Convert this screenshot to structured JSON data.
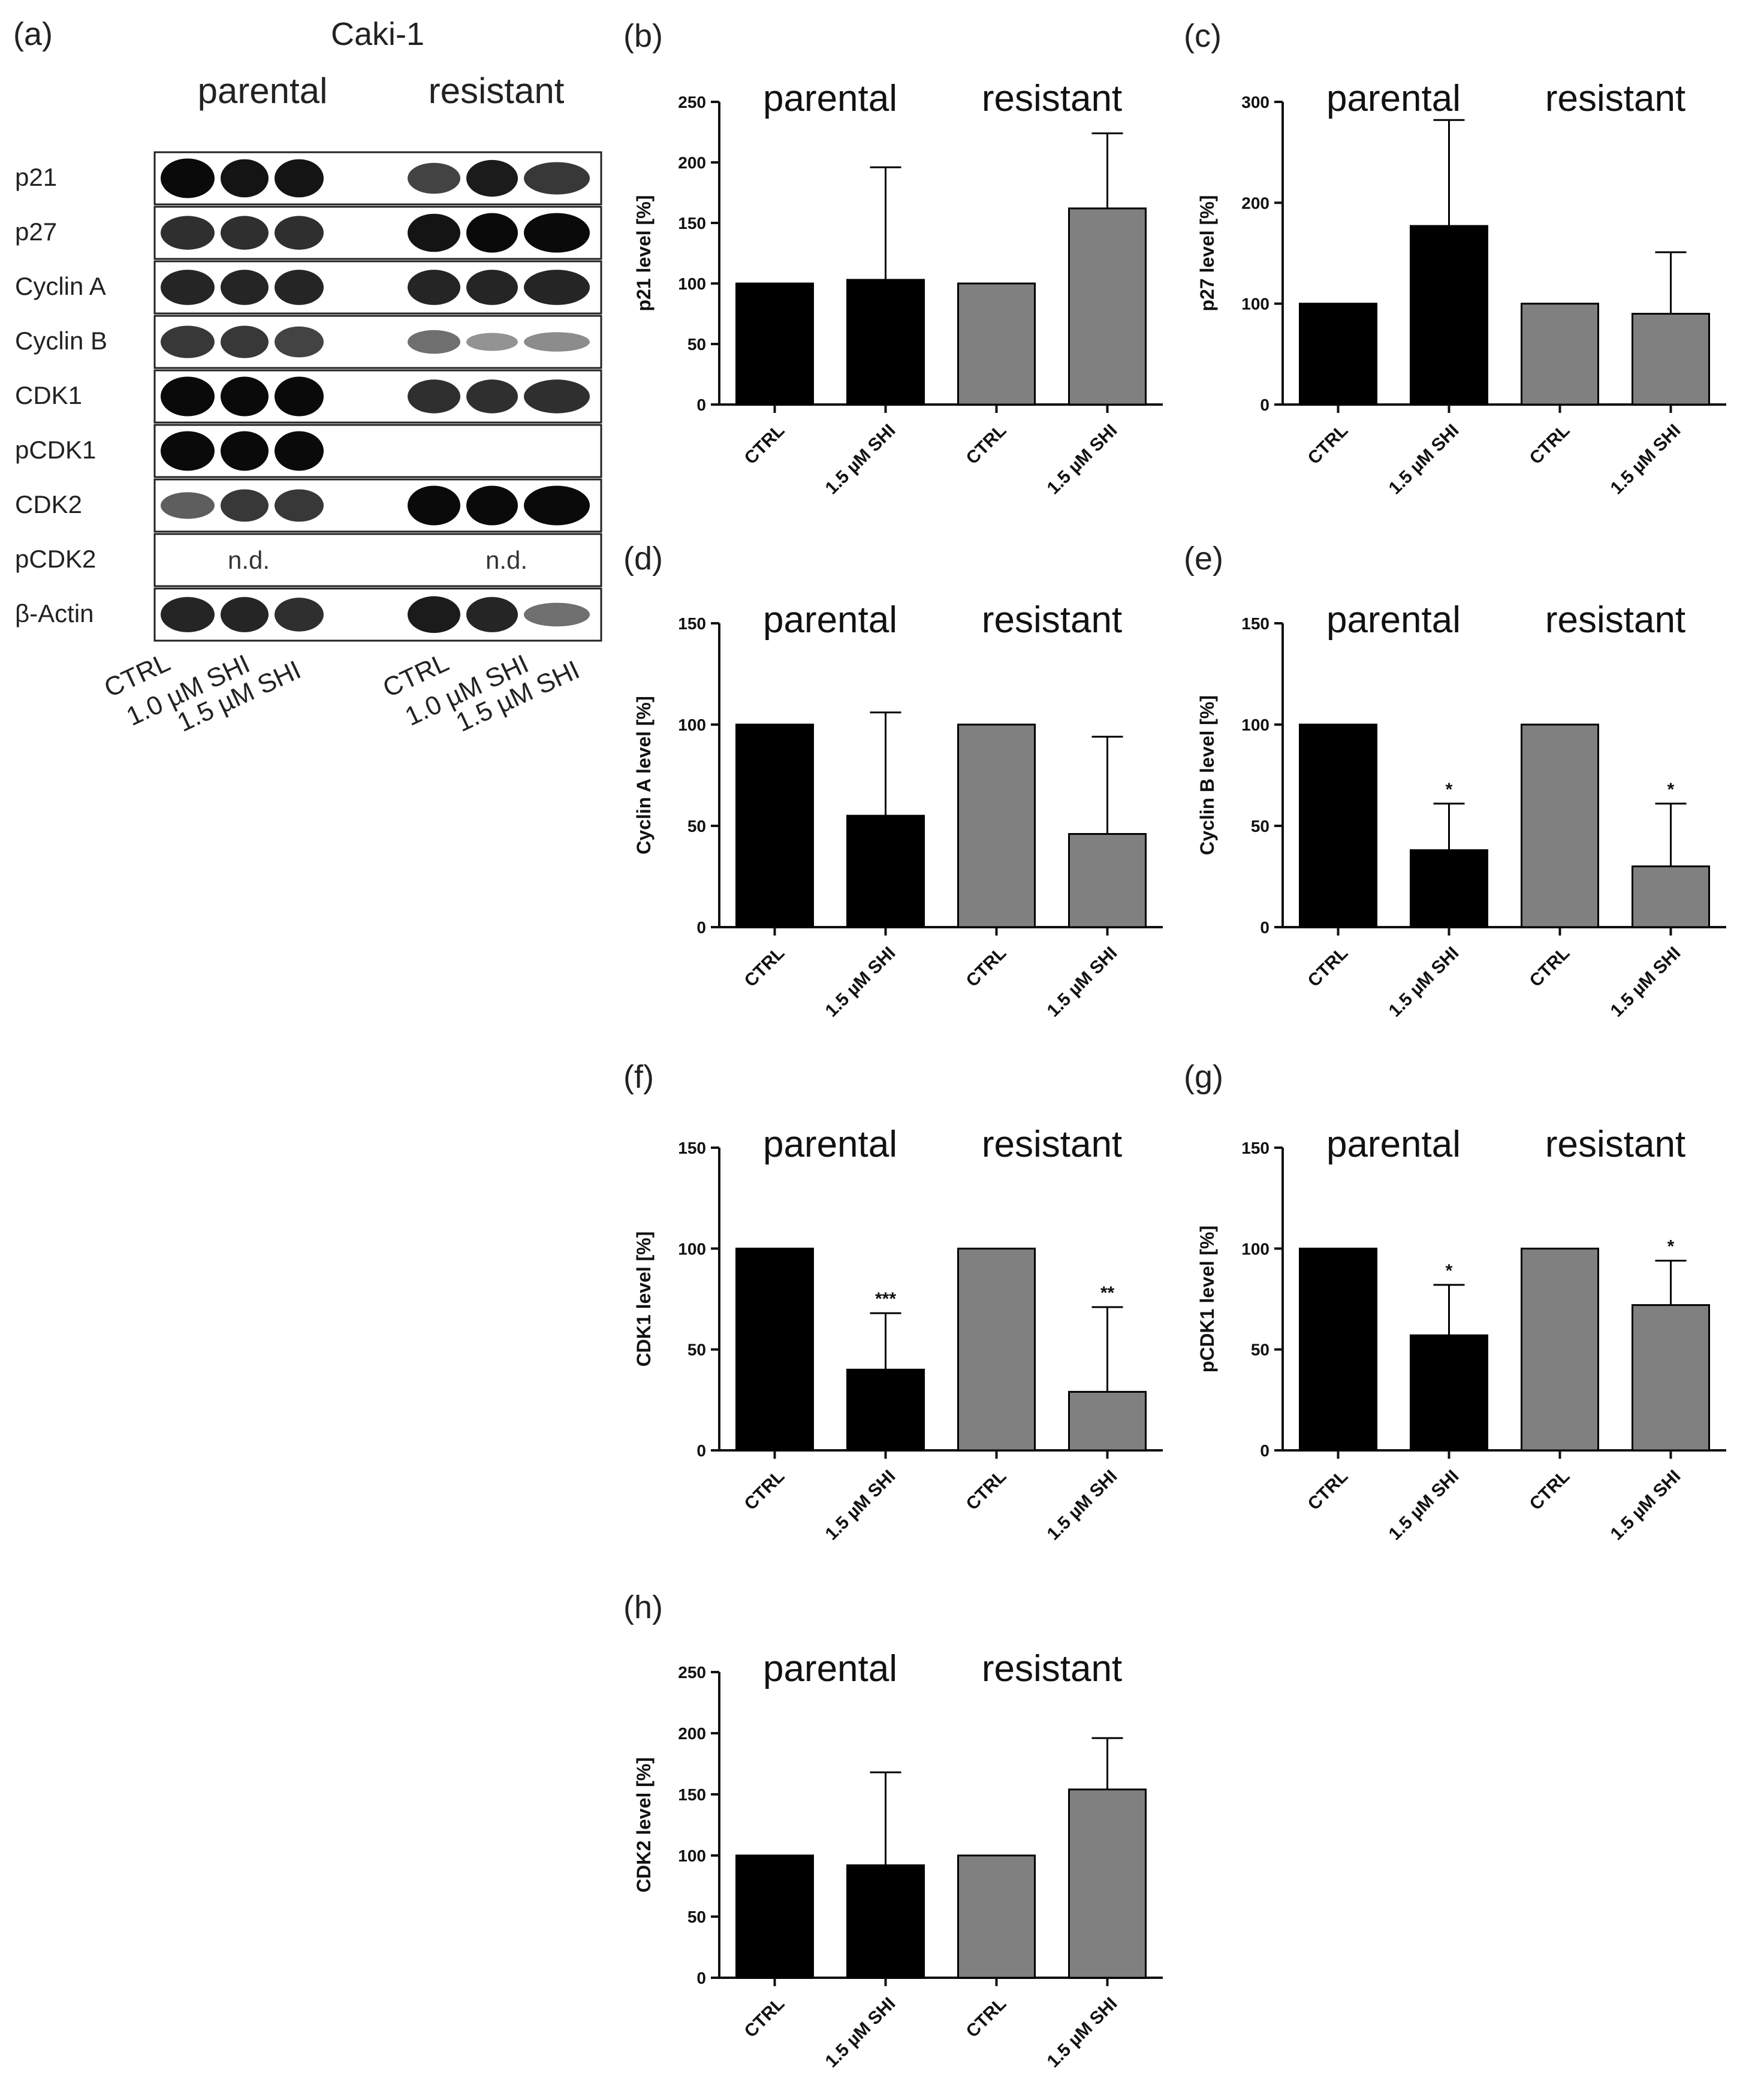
{
  "figure": {
    "panel_a": {
      "letter": "(a)",
      "title": "Caki-1",
      "groups": [
        "parental",
        "resistant"
      ],
      "rows": [
        "p21",
        "p27",
        "Cyclin A",
        "Cyclin B",
        "CDK1",
        "pCDK1",
        "CDK2",
        "pCDK2",
        "β-Actin"
      ],
      "nd_label": "n.d.",
      "lanes": [
        "CTRL",
        "1.0 µM SHI",
        "1.5 µM SHI"
      ],
      "band_intensity": {
        "parental": [
          [
            1.0,
            0.95,
            0.95
          ],
          [
            0.8,
            0.8,
            0.8
          ],
          [
            0.85,
            0.85,
            0.85
          ],
          [
            0.75,
            0.75,
            0.7
          ],
          [
            1.0,
            1.0,
            1.0
          ],
          [
            1.0,
            1.0,
            1.0
          ],
          [
            0.55,
            0.75,
            0.75
          ],
          null,
          [
            0.85,
            0.85,
            0.8
          ]
        ],
        "resistant": [
          [
            0.7,
            0.9,
            0.75
          ],
          [
            0.95,
            1.0,
            1.0
          ],
          [
            0.85,
            0.85,
            0.85
          ],
          [
            0.45,
            0.25,
            0.3
          ],
          [
            0.8,
            0.8,
            0.8
          ],
          [
            0,
            0,
            0
          ],
          [
            1.0,
            1.0,
            1.0
          ],
          null,
          [
            0.9,
            0.85,
            0.45
          ]
        ]
      }
    }
  },
  "chart_data": [
    {
      "letter": "(b)",
      "type": "bar",
      "ylabel": "p21 level [%]",
      "ylim": [
        0,
        250
      ],
      "yticks": [
        0,
        50,
        100,
        150,
        200,
        250
      ],
      "groups": [
        "parental",
        "resistant"
      ],
      "categories": [
        "CTRL",
        "1.5 µM SHI",
        "CTRL",
        "1.5 µM SHI"
      ],
      "series": [
        {
          "name": "parental",
          "color": "#000000"
        },
        {
          "name": "resistant",
          "color": "#808080"
        }
      ],
      "values": [
        100,
        103,
        100,
        162
      ],
      "errors": [
        0,
        93,
        0,
        62
      ],
      "significance": [
        "",
        "",
        "",
        ""
      ]
    },
    {
      "letter": "(c)",
      "type": "bar",
      "ylabel": "p27 level [%]",
      "ylim": [
        0,
        300
      ],
      "yticks": [
        0,
        100,
        200,
        300
      ],
      "groups": [
        "parental",
        "resistant"
      ],
      "categories": [
        "CTRL",
        "1.5 µM SHI",
        "CTRL",
        "1.5 µM SHI"
      ],
      "values": [
        100,
        177,
        100,
        90
      ],
      "errors": [
        0,
        105,
        0,
        61
      ],
      "significance": [
        "",
        "",
        "",
        ""
      ]
    },
    {
      "letter": "(d)",
      "type": "bar",
      "ylabel": "Cyclin A level [%]",
      "ylim": [
        0,
        150
      ],
      "yticks": [
        0,
        50,
        100,
        150
      ],
      "groups": [
        "parental",
        "resistant"
      ],
      "categories": [
        "CTRL",
        "1.5 µM SHI",
        "CTRL",
        "1.5 µM SHI"
      ],
      "values": [
        100,
        55,
        100,
        46
      ],
      "errors": [
        0,
        51,
        0,
        48
      ],
      "significance": [
        "",
        "",
        "",
        ""
      ]
    },
    {
      "letter": "(e)",
      "type": "bar",
      "ylabel": "Cyclin B level [%]",
      "ylim": [
        0,
        150
      ],
      "yticks": [
        0,
        50,
        100,
        150
      ],
      "groups": [
        "parental",
        "resistant"
      ],
      "categories": [
        "CTRL",
        "1.5 µM SHI",
        "CTRL",
        "1.5 µM SHI"
      ],
      "values": [
        100,
        38,
        100,
        30
      ],
      "errors": [
        0,
        23,
        0,
        31
      ],
      "significance": [
        "",
        "*",
        "",
        "*"
      ]
    },
    {
      "letter": "(f)",
      "type": "bar",
      "ylabel": "CDK1 level [%]",
      "ylim": [
        0,
        150
      ],
      "yticks": [
        0,
        50,
        100,
        150
      ],
      "groups": [
        "parental",
        "resistant"
      ],
      "categories": [
        "CTRL",
        "1.5 µM SHI",
        "CTRL",
        "1.5 µM SHI"
      ],
      "values": [
        100,
        40,
        100,
        29
      ],
      "errors": [
        0,
        28,
        0,
        42
      ],
      "significance": [
        "",
        "***",
        "",
        "**"
      ]
    },
    {
      "letter": "(g)",
      "type": "bar",
      "ylabel": "pCDK1 level [%]",
      "ylim": [
        0,
        150
      ],
      "yticks": [
        0,
        50,
        100,
        150
      ],
      "groups": [
        "parental",
        "resistant"
      ],
      "categories": [
        "CTRL",
        "1.5 µM SHI",
        "CTRL",
        "1.5 µM SHI"
      ],
      "values": [
        100,
        57,
        100,
        72
      ],
      "errors": [
        0,
        25,
        0,
        22
      ],
      "significance": [
        "",
        "*",
        "",
        "*"
      ]
    },
    {
      "letter": "(h)",
      "type": "bar",
      "ylabel": "CDK2 level [%]",
      "ylim": [
        0,
        250
      ],
      "yticks": [
        0,
        50,
        100,
        150,
        200,
        250
      ],
      "groups": [
        "parental",
        "resistant"
      ],
      "categories": [
        "CTRL",
        "1.5 µM SHI",
        "CTRL",
        "1.5 µM SHI"
      ],
      "values": [
        100,
        92,
        100,
        154
      ],
      "errors": [
        0,
        76,
        0,
        42
      ],
      "significance": [
        "",
        "",
        "",
        ""
      ]
    }
  ],
  "colors": {
    "parental": "#000000",
    "resistant": "#808080",
    "axis": "#111111"
  }
}
